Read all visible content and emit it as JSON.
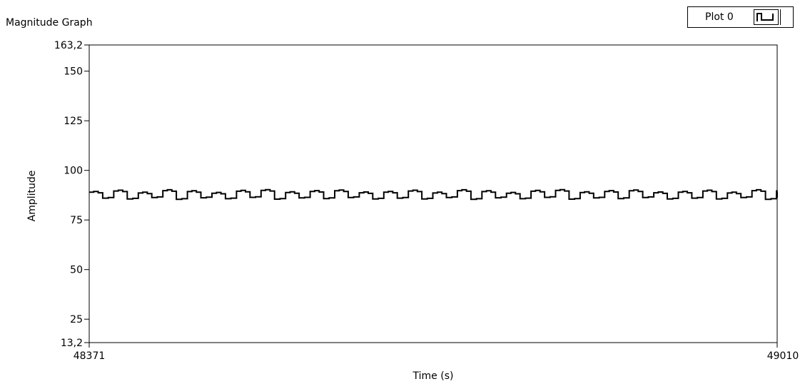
{
  "graph_title": "Magnitude Graph",
  "legend": {
    "label": "Plot 0",
    "icon": "square-wave-icon"
  },
  "chart_data": {
    "type": "line",
    "title": "Magnitude Graph",
    "xlabel": "Time (s)",
    "ylabel": "Amplitude",
    "xlim": [
      48371,
      49010
    ],
    "ylim": [
      13.2,
      163.2
    ],
    "x_ticks": [
      "48371",
      "49010"
    ],
    "y_ticks": [
      "163,2",
      "150",
      "125",
      "100",
      "75",
      "50",
      "25",
      "13,2"
    ],
    "y_tick_values": [
      163.2,
      150,
      125,
      100,
      75,
      50,
      25,
      13.2
    ],
    "grid": false,
    "legend_position": "top-right",
    "line_color": "#000000",
    "series": [
      {
        "name": "Plot 0",
        "pattern": {
          "period_s": 22.8,
          "high_level": 89,
          "low_level": 86,
          "duty": 0.55,
          "description_values": [
            89,
            89,
            89,
            86,
            86
          ]
        },
        "x": [
          48371,
          48380,
          48384,
          48394,
          48406,
          48417,
          48429,
          48440,
          48452,
          48463,
          48475,
          48486,
          48497,
          48509,
          48520,
          48532,
          48543,
          48554,
          48566,
          48577,
          48589,
          48600,
          48611,
          48623,
          48634,
          48646,
          48657,
          48669,
          48680,
          48691,
          48703,
          48714,
          48726,
          48737,
          48748,
          48760,
          48771,
          48783,
          48794,
          48805,
          48817,
          48828,
          48840,
          48851,
          48863,
          48874,
          48885,
          48897,
          48908,
          48920,
          48931,
          48942,
          48954,
          48965,
          48977,
          48988,
          48999,
          49005,
          49010
        ],
        "values": [
          89,
          88,
          86,
          89,
          86,
          89,
          86,
          89,
          86,
          90,
          86,
          89,
          86,
          89,
          86,
          89,
          86,
          89,
          86,
          90,
          86,
          89,
          86,
          89,
          86,
          89,
          86,
          89,
          86,
          89,
          86,
          89,
          86,
          89,
          86,
          89,
          86,
          89,
          86,
          90,
          86,
          89,
          86,
          89,
          86,
          89,
          86,
          89,
          86,
          90,
          86,
          89,
          86,
          89,
          86,
          90,
          86,
          89,
          86
        ]
      }
    ]
  }
}
